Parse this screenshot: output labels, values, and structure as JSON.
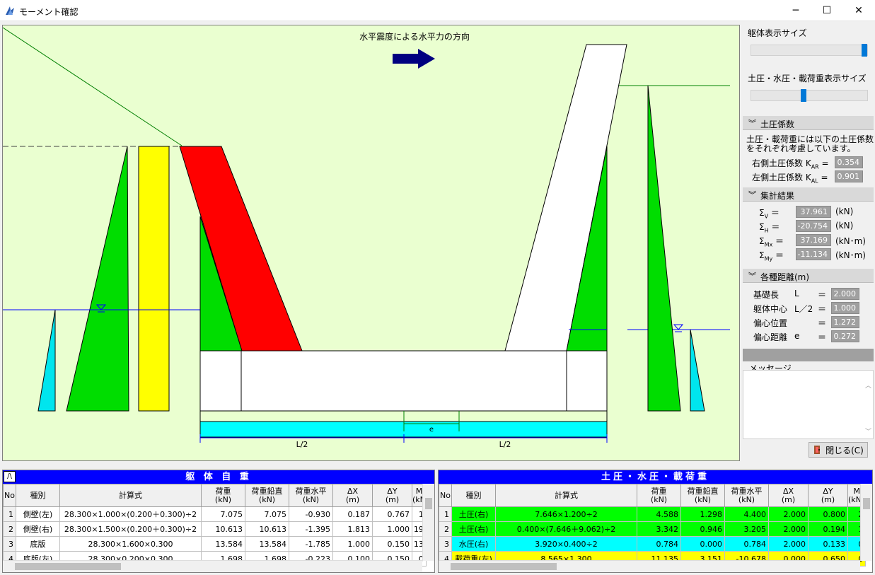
{
  "window": {
    "title": "モーメント確認",
    "minimize": "─",
    "maximize": "☐",
    "close": "✕"
  },
  "drawing": {
    "arrow_label": "水平震度による水平力の方向",
    "e_label": "e",
    "half_left": "L/2",
    "half_right": "L/2"
  },
  "sidebar": {
    "slider1_label": "躯体表示サイズ",
    "slider1_value": 1.0,
    "slider2_label": "土圧・水圧・載荷重表示サイズ",
    "slider2_value": 0.45,
    "earth": {
      "header": "土圧係数",
      "desc1": "土圧・載荷重には以下の土圧係数",
      "desc2": "をそれぞれ考慮しています。",
      "right_label": "右側土圧係数 K",
      "right_sub": "AR",
      "right_value": "0.354",
      "left_label": "左側土圧係数 K",
      "left_sub": "AL",
      "left_value": "0.901",
      "eq": "="
    },
    "sum": {
      "header": "集計結果",
      "rows": [
        {
          "sym": "Σ",
          "sub": "V",
          "value": "37.961",
          "unit": "(kN)"
        },
        {
          "sym": "Σ",
          "sub": "H",
          "value": "-20.754",
          "unit": "(kN)"
        },
        {
          "sym": "Σ",
          "sub": "Mx",
          "value": "37.169",
          "unit": "(kN･m)"
        },
        {
          "sym": "Σ",
          "sub": "My",
          "value": "-11.134",
          "unit": "(kN･m)"
        }
      ]
    },
    "dist": {
      "header": "各種距離(m)",
      "rows": [
        {
          "label": "基礎長",
          "sym": "L",
          "value": "2.000"
        },
        {
          "label": "躯体中心",
          "sym": "L／2",
          "value": "1.000"
        },
        {
          "label": "偏心位置",
          "sym": "",
          "value": "1.272"
        },
        {
          "label": "偏心距離",
          "sym": "e",
          "value": "0.272"
        }
      ]
    },
    "message_label": "メッセージ",
    "close_button": "閉じる(C)"
  },
  "left_table": {
    "title": "躯 体 自 重",
    "corner": "/\\",
    "headers": [
      "No",
      "種別",
      "計算式",
      "荷重\n(kN)",
      "荷重鉛直\n(kN)",
      "荷重水平\n(kN)",
      "ΔX\n(m)",
      "ΔY\n(m)",
      "M\n(kN"
    ],
    "rows": [
      [
        "1",
        "側壁(左)",
        "28.300×1.000×(0.200＋0.300)÷2",
        "7.075",
        "7.075",
        "-0.930",
        "0.187",
        "0.767",
        "1"
      ],
      [
        "2",
        "側壁(右)",
        "28.300×1.500×(0.200＋0.300)÷2",
        "10.613",
        "10.613",
        "-1.395",
        "1.813",
        "1.000",
        "19"
      ],
      [
        "3",
        "底版",
        "28.300×1.600×0.300",
        "13.584",
        "13.584",
        "-1.785",
        "1.000",
        "0.150",
        "13"
      ],
      [
        "4",
        "底版(左)",
        "28.300×0.200×0.300",
        "1.698",
        "1.698",
        "-0.223",
        "0.100",
        "0.150",
        "0"
      ]
    ]
  },
  "right_table": {
    "title": "土圧・水圧・載荷重",
    "headers": [
      "No",
      "種別",
      "計算式",
      "荷重\n(kN)",
      "荷重鉛直\n(kN)",
      "荷重水平\n(kN)",
      "ΔX\n(m)",
      "ΔY\n(m)",
      "M\n(kN･"
    ],
    "rows": [
      [
        "1",
        "土圧(右)",
        "7.646×1.200÷2",
        "4.588",
        "1.298",
        "4.400",
        "2.000",
        "0.800",
        "2"
      ],
      [
        "2",
        "土圧(右)",
        "0.400×(7.646＋9.062)÷2",
        "3.342",
        "0.946",
        "3.205",
        "2.000",
        "0.194",
        "1"
      ],
      [
        "3",
        "水圧(右)",
        "3.920×0.400÷2",
        "0.784",
        "0.000",
        "0.784",
        "2.000",
        "0.133",
        "0"
      ],
      [
        "4",
        "載荷重(左)",
        "8.565×1.300",
        "11.135",
        "3.151",
        "-10.678",
        "0.000",
        "0.650",
        "0"
      ]
    ],
    "row_colors": [
      "#00ff00",
      "#00ff00",
      "#00ffff",
      "#ffff00"
    ]
  }
}
